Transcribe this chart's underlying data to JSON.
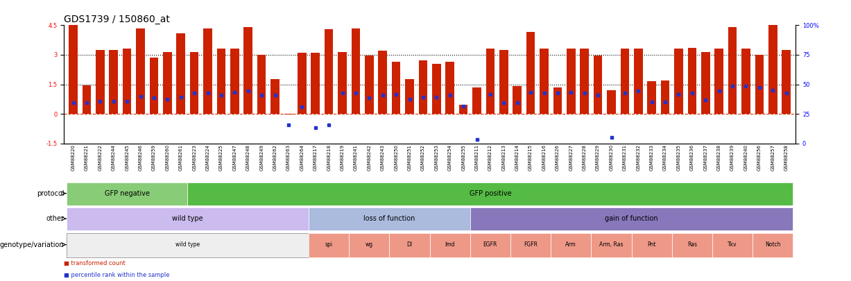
{
  "title": "GDS1739 / 150860_at",
  "samples": [
    "GSM88220",
    "GSM88221",
    "GSM88222",
    "GSM88244",
    "GSM88245",
    "GSM88246",
    "GSM88259",
    "GSM88260",
    "GSM88261",
    "GSM88223",
    "GSM88224",
    "GSM88225",
    "GSM88247",
    "GSM88248",
    "GSM88249",
    "GSM88262",
    "GSM88263",
    "GSM88264",
    "GSM88217",
    "GSM88218",
    "GSM88219",
    "GSM88241",
    "GSM88242",
    "GSM88243",
    "GSM88250",
    "GSM88251",
    "GSM88252",
    "GSM88253",
    "GSM88254",
    "GSM88255",
    "GSM88211",
    "GSM88212",
    "GSM88213",
    "GSM88214",
    "GSM88215",
    "GSM88216",
    "GSM88226",
    "GSM88227",
    "GSM88228",
    "GSM88229",
    "GSM88230",
    "GSM88231",
    "GSM88232",
    "GSM88233",
    "GSM88234",
    "GSM88235",
    "GSM88236",
    "GSM88237",
    "GSM88238",
    "GSM88239",
    "GSM88240",
    "GSM88256",
    "GSM88257",
    "GSM88258"
  ],
  "bar_values": [
    4.5,
    1.45,
    3.25,
    3.25,
    3.3,
    4.35,
    2.85,
    3.15,
    4.1,
    3.15,
    4.35,
    3.3,
    3.3,
    4.4,
    3.0,
    1.75,
    -0.05,
    3.1,
    3.1,
    4.3,
    3.15,
    4.35,
    2.95,
    3.2,
    2.65,
    1.75,
    2.7,
    2.55,
    2.65,
    0.45,
    1.35,
    3.3,
    3.25,
    1.4,
    4.15,
    3.3,
    1.35,
    3.3,
    3.3,
    2.95,
    1.2,
    3.3,
    3.3,
    1.65,
    1.7,
    3.3,
    3.35,
    3.15,
    3.3,
    4.4,
    3.3,
    3.0,
    4.5,
    3.25
  ],
  "percentile_values": [
    0.55,
    0.55,
    0.65,
    0.65,
    0.65,
    0.9,
    0.8,
    0.75,
    0.85,
    1.05,
    1.05,
    0.95,
    1.1,
    1.15,
    0.95,
    0.95,
    -0.55,
    0.35,
    -0.7,
    -0.55,
    1.05,
    1.05,
    0.8,
    0.95,
    1.0,
    0.75,
    0.85,
    0.85,
    0.95,
    0.4,
    -1.3,
    1.0,
    0.55,
    0.55,
    1.1,
    1.05,
    1.05,
    1.1,
    1.05,
    0.95,
    -1.2,
    1.05,
    1.15,
    0.6,
    0.6,
    1.0,
    1.05,
    0.7,
    1.15,
    1.4,
    1.4,
    1.35,
    1.2,
    1.05
  ],
  "bar_color": "#CC2200",
  "percentile_color": "#2233CC",
  "ylim_left": [
    -1.5,
    4.5
  ],
  "yticks_left": [
    -1.5,
    0.0,
    1.5,
    3.0,
    4.5
  ],
  "ytick_labels_left": [
    "-1.5",
    "0",
    "1.5",
    "3",
    "4.5"
  ],
  "yticks_right": [
    0,
    25,
    50,
    75,
    100
  ],
  "ytick_labels_right": [
    "0",
    "25",
    "50",
    "75",
    "100%"
  ],
  "protocol_groups": [
    {
      "label": "GFP negative",
      "start": 0,
      "end": 9,
      "color": "#88CC77"
    },
    {
      "label": "GFP positive",
      "start": 9,
      "end": 54,
      "color": "#55BB44"
    }
  ],
  "other_groups": [
    {
      "label": "wild type",
      "start": 0,
      "end": 18,
      "color": "#CCBBEE"
    },
    {
      "label": "loss of function",
      "start": 18,
      "end": 30,
      "color": "#AABBDD"
    },
    {
      "label": "gain of function",
      "start": 30,
      "end": 54,
      "color": "#8877BB"
    }
  ],
  "genotype_groups": [
    {
      "label": "wild type",
      "start": 0,
      "end": 18,
      "color": "#EEEEEE"
    },
    {
      "label": "spi",
      "start": 18,
      "end": 21,
      "color": "#EE9988"
    },
    {
      "label": "wg",
      "start": 21,
      "end": 24,
      "color": "#EE9988"
    },
    {
      "label": "Dl",
      "start": 24,
      "end": 27,
      "color": "#EE9988"
    },
    {
      "label": "Imd",
      "start": 27,
      "end": 30,
      "color": "#EE9988"
    },
    {
      "label": "EGFR",
      "start": 30,
      "end": 33,
      "color": "#EE9988"
    },
    {
      "label": "FGFR",
      "start": 33,
      "end": 36,
      "color": "#EE9988"
    },
    {
      "label": "Arm",
      "start": 36,
      "end": 39,
      "color": "#EE9988"
    },
    {
      "label": "Arm, Ras",
      "start": 39,
      "end": 42,
      "color": "#EE9988"
    },
    {
      "label": "Pnt",
      "start": 42,
      "end": 45,
      "color": "#EE9988"
    },
    {
      "label": "Ras",
      "start": 45,
      "end": 48,
      "color": "#EE9988"
    },
    {
      "label": "Tkv",
      "start": 48,
      "end": 51,
      "color": "#EE9988"
    },
    {
      "label": "Notch",
      "start": 51,
      "end": 54,
      "color": "#EE9988"
    }
  ],
  "bar_width": 0.65,
  "title_fontsize": 10,
  "tick_fontsize": 6,
  "label_fontsize": 7,
  "row_fontsize": 7,
  "sample_fontsize": 5
}
